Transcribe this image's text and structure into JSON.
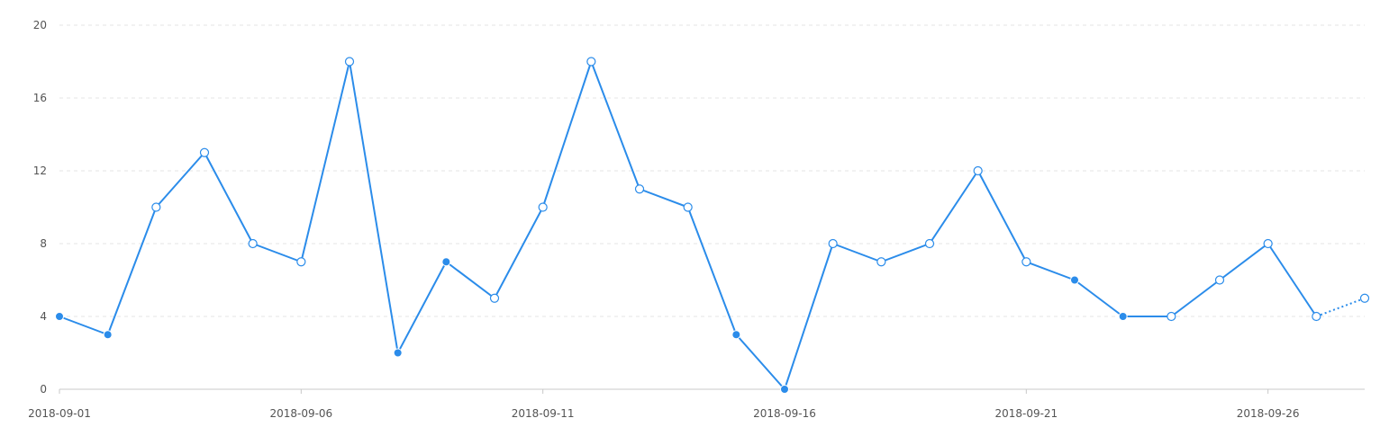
{
  "chart_data": {
    "type": "line",
    "title": "",
    "xlabel": "",
    "ylabel": "",
    "x": [
      "2018-09-01",
      "2018-09-02",
      "2018-09-03",
      "2018-09-04",
      "2018-09-05",
      "2018-09-06",
      "2018-09-07",
      "2018-09-08",
      "2018-09-09",
      "2018-09-10",
      "2018-09-11",
      "2018-09-12",
      "2018-09-13",
      "2018-09-14",
      "2018-09-15",
      "2018-09-16",
      "2018-09-17",
      "2018-09-18",
      "2018-09-19",
      "2018-09-20",
      "2018-09-21",
      "2018-09-22",
      "2018-09-23",
      "2018-09-24",
      "2018-09-25",
      "2018-09-26",
      "2018-09-27",
      "2018-09-28"
    ],
    "series": [
      {
        "values": [
          4,
          3,
          10,
          13,
          8,
          7,
          18,
          2,
          7,
          5,
          10,
          18,
          11,
          10,
          3,
          0,
          8,
          7,
          8,
          12,
          7,
          6,
          4,
          4,
          6,
          8,
          4,
          5
        ],
        "marker_filled": [
          true,
          true,
          false,
          false,
          false,
          false,
          false,
          true,
          true,
          false,
          false,
          false,
          false,
          false,
          true,
          true,
          false,
          false,
          false,
          false,
          false,
          true,
          true,
          false,
          false,
          false,
          false,
          false
        ],
        "dotted_from_index": 26
      }
    ],
    "ylim": [
      0,
      20
    ],
    "y_ticks": [
      "0",
      "4",
      "8",
      "12",
      "16",
      "20"
    ],
    "x_ticks": [
      "2018-09-01",
      "2018-09-06",
      "2018-09-11",
      "2018-09-16",
      "2018-09-21",
      "2018-09-26"
    ],
    "grid": true,
    "legend": "none",
    "colors": {
      "line": "#2b8cea",
      "grid": "#e6e6e6",
      "axis": "#c8c8c8",
      "text": "#545454",
      "background": "#ffffff"
    }
  }
}
